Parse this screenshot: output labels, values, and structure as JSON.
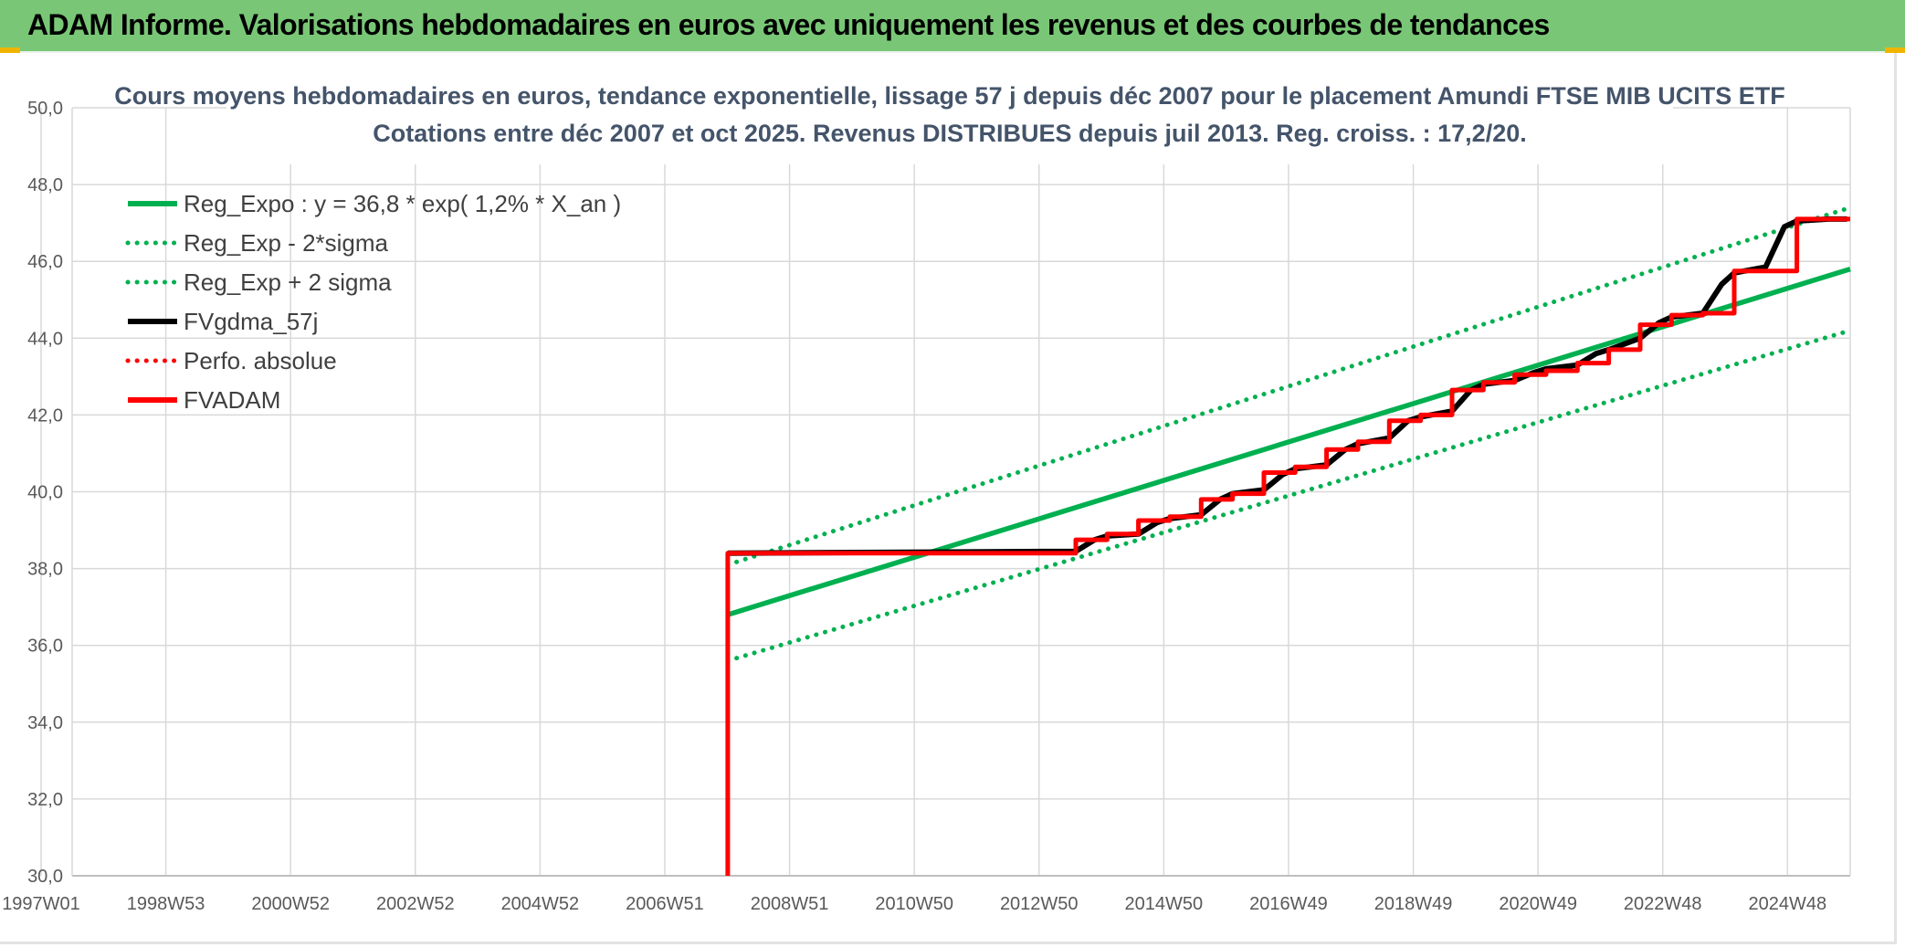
{
  "header": {
    "title": "ADAM Informe. Valorisations hebdomadaires en euros avec uniquement les revenus et des courbes de tendances"
  },
  "colors": {
    "header_bg": "#79c776",
    "accent_corner": "#f0b400",
    "green": "#00b050",
    "red": "#ff0000",
    "black": "#000000",
    "grid": "#d9d9d9",
    "title_text": "#44546a"
  },
  "chart_data": {
    "type": "line",
    "title_lines": [
      "Cours moyens hebdomadaires en euros, tendance exponentielle, lissage 57 j depuis déc 2007 pour le placement Amundi FTSE MIB UCITS ETF",
      "Cotations entre déc 2007 et oct 2025. Revenus DISTRIBUES depuis juil 2013. Reg. croiss. : 17,2/20."
    ],
    "ylim": [
      30,
      50
    ],
    "y_ticks": [
      "30,0",
      "32,0",
      "34,0",
      "36,0",
      "38,0",
      "40,0",
      "42,0",
      "44,0",
      "46,0",
      "48,0",
      "50,0"
    ],
    "x_ticks": [
      "1997W01",
      "1998W53",
      "2000W52",
      "2002W52",
      "2004W52",
      "2006W51",
      "2008W51",
      "2010W50",
      "2012W50",
      "2014W50",
      "2016W49",
      "2018W49",
      "2020W49",
      "2022W48",
      "2024W48"
    ],
    "x_unit": "year",
    "x_range": [
      1997.0,
      2025.85
    ],
    "grid": true,
    "legend_position": "top-left",
    "series": [
      {
        "name": "Reg_Expo : y = 36,8 * exp( 1,2% *  X_an )",
        "color": "#00b050",
        "style": "solid",
        "x": [
          2007.95,
          2025.85
        ],
        "y": [
          36.8,
          45.8
        ]
      },
      {
        "name": "Reg_Exp - 2*sigma",
        "color": "#00b050",
        "style": "dotted",
        "x": [
          2007.95,
          2025.85
        ],
        "y": [
          35.6,
          44.2
        ]
      },
      {
        "name": "Reg_Exp + 2 sigma",
        "color": "#00b050",
        "style": "dotted",
        "x": [
          2007.95,
          2025.85
        ],
        "y": [
          38.1,
          47.4
        ]
      },
      {
        "name": "FVgdma_57j",
        "color": "#000000",
        "style": "solid",
        "x": [
          2007.95,
          2013.5,
          2013.8,
          2014.0,
          2014.5,
          2014.8,
          2015.0,
          2015.5,
          2015.8,
          2016.0,
          2016.5,
          2016.8,
          2017.0,
          2017.5,
          2017.8,
          2018.0,
          2018.5,
          2018.8,
          2019.0,
          2019.5,
          2019.8,
          2020.0,
          2020.5,
          2020.8,
          2021.0,
          2021.5,
          2021.8,
          2022.0,
          2022.5,
          2022.8,
          2023.0,
          2023.5,
          2023.8,
          2024.0,
          2024.5,
          2024.8,
          2025.0,
          2025.5,
          2025.8
        ],
        "y": [
          38.4,
          38.45,
          38.75,
          38.85,
          38.9,
          39.2,
          39.3,
          39.4,
          39.8,
          39.95,
          40.05,
          40.45,
          40.6,
          40.7,
          41.1,
          41.25,
          41.4,
          41.85,
          41.95,
          42.1,
          42.65,
          42.8,
          42.9,
          43.1,
          43.2,
          43.3,
          43.6,
          43.7,
          44.0,
          44.4,
          44.55,
          44.65,
          45.4,
          45.7,
          45.85,
          46.9,
          47.05,
          47.1,
          47.1
        ]
      },
      {
        "name": "Perfo. absolue",
        "color": "#ff0000",
        "style": "dotted",
        "x": [],
        "y": []
      },
      {
        "name": "FVADAM",
        "color": "#ff0000",
        "style": "solid",
        "x": [
          2007.95,
          2007.95,
          2013.5,
          2013.5,
          2014.0,
          2014.0,
          2014.5,
          2014.5,
          2015.0,
          2015.0,
          2015.5,
          2015.5,
          2016.0,
          2016.0,
          2016.5,
          2016.5,
          2017.0,
          2017.0,
          2017.5,
          2017.5,
          2018.0,
          2018.0,
          2018.5,
          2018.5,
          2019.0,
          2019.0,
          2019.5,
          2019.5,
          2020.0,
          2020.0,
          2020.5,
          2020.5,
          2021.0,
          2021.0,
          2021.5,
          2021.5,
          2022.0,
          2022.0,
          2022.5,
          2022.5,
          2023.0,
          2023.0,
          2023.5,
          2023.5,
          2024.0,
          2024.0,
          2024.5,
          2024.5,
          2025.0,
          2025.0,
          2025.85
        ],
        "y": [
          30.0,
          38.4,
          38.4,
          38.75,
          38.75,
          38.9,
          38.9,
          39.25,
          39.25,
          39.35,
          39.35,
          39.8,
          39.8,
          39.95,
          39.95,
          40.5,
          40.5,
          40.65,
          40.65,
          41.1,
          41.1,
          41.3,
          41.3,
          41.85,
          41.85,
          42.0,
          42.0,
          42.65,
          42.65,
          42.85,
          42.85,
          43.05,
          43.05,
          43.15,
          43.15,
          43.35,
          43.35,
          43.7,
          43.7,
          44.35,
          44.35,
          44.6,
          44.6,
          44.65,
          44.65,
          45.75,
          45.75,
          45.75,
          45.75,
          47.1,
          47.1
        ]
      }
    ]
  }
}
